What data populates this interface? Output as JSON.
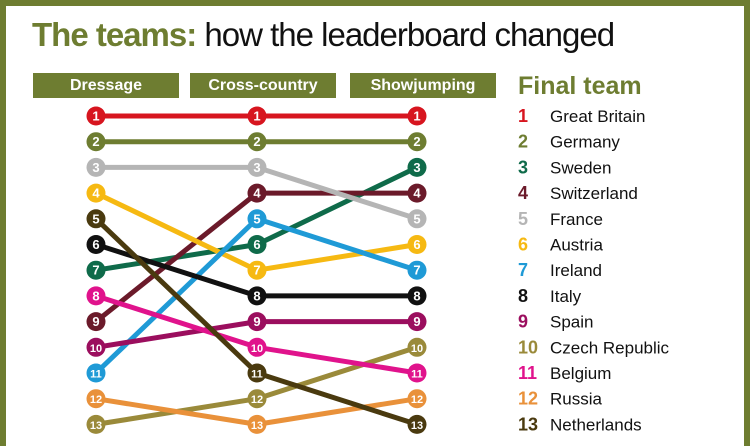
{
  "chart_data": {
    "type": "bump",
    "title_strong": "The teams:",
    "title_rest": "how the leaderboard changed",
    "stages": [
      "Dressage",
      "Cross-country",
      "Showjumping"
    ],
    "legend_title": "Final team",
    "series": [
      {
        "name": "Great Britain",
        "ranks": [
          1,
          1,
          1
        ],
        "color": "#d7151f"
      },
      {
        "name": "Germany",
        "ranks": [
          2,
          2,
          2
        ],
        "color": "#6e7d31"
      },
      {
        "name": "Sweden",
        "ranks": [
          7,
          6,
          3
        ],
        "color": "#0f6b4a"
      },
      {
        "name": "Switzerland",
        "ranks": [
          9,
          4,
          4
        ],
        "color": "#6b1a2a"
      },
      {
        "name": "France",
        "ranks": [
          3,
          3,
          5
        ],
        "color": "#b5b5b5"
      },
      {
        "name": "Austria",
        "ranks": [
          4,
          7,
          6
        ],
        "color": "#f6b912"
      },
      {
        "name": "Ireland",
        "ranks": [
          11,
          5,
          7
        ],
        "color": "#1f9ad6"
      },
      {
        "name": "Italy",
        "ranks": [
          6,
          8,
          8
        ],
        "color": "#111111"
      },
      {
        "name": "Spain",
        "ranks": [
          10,
          9,
          9
        ],
        "color": "#9b0e5e"
      },
      {
        "name": "Czech Republic",
        "ranks": [
          13,
          12,
          10
        ],
        "color": "#9a8a3a"
      },
      {
        "name": "Belgium",
        "ranks": [
          8,
          10,
          11
        ],
        "color": "#e0138c"
      },
      {
        "name": "Russia",
        "ranks": [
          12,
          13,
          12
        ],
        "color": "#e9913a"
      },
      {
        "name": "Netherlands",
        "ranks": [
          5,
          11,
          13
        ],
        "color": "#4a3a0f"
      }
    ]
  }
}
